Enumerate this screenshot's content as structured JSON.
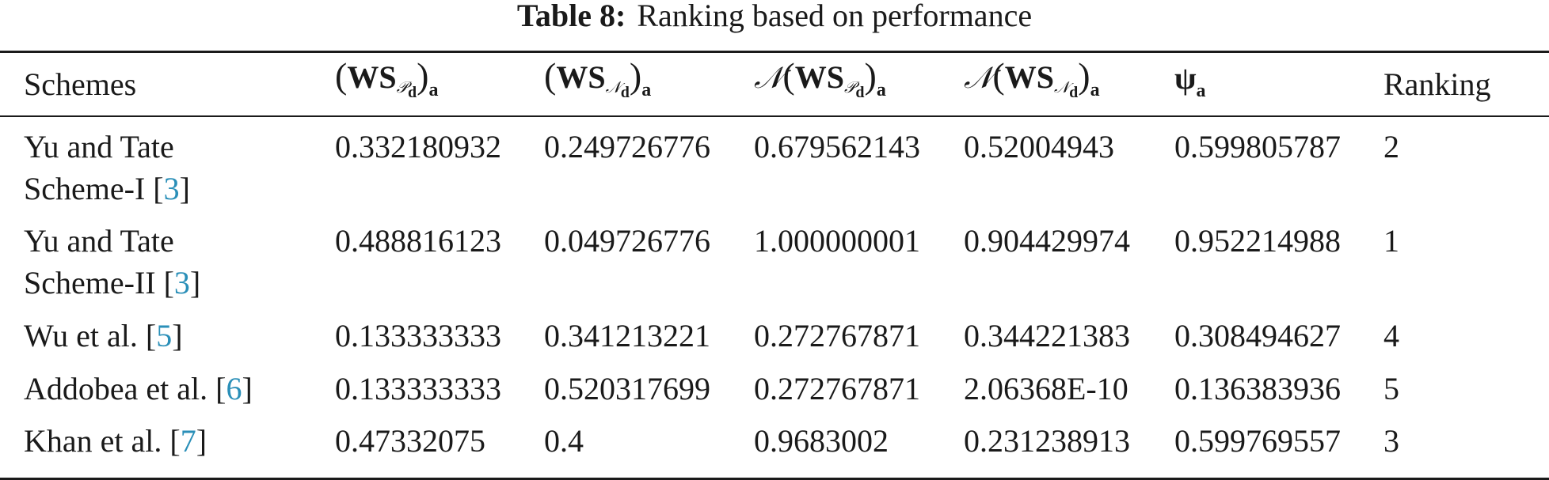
{
  "caption": {
    "label": "Table 8:",
    "text": "Ranking based on performance"
  },
  "table": {
    "headers": [
      "Schemes",
      "(WS_Pd)_a",
      "(WS_Nd)_a",
      "N(WS_Pd)_a",
      "N(WS_Nd)_a",
      "ψ_a",
      "Ranking"
    ],
    "header_parts": {
      "ws": "WS",
      "p": "𝒫",
      "n": "𝒩",
      "d": "d",
      "a": "a",
      "psi": "ψ",
      "open": "(",
      "close": ")"
    },
    "rows": [
      {
        "scheme_line1": "Yu and Tate",
        "scheme_line2": "Scheme-I [",
        "cite": "3",
        "cite_close": "]",
        "ws_p": "0.332180932",
        "ws_n": "0.249726776",
        "n_ws_p": "0.679562143",
        "n_ws_n": "0.52004943",
        "psi": "0.599805787",
        "rank": "2"
      },
      {
        "scheme_line1": "Yu and Tate",
        "scheme_line2": "Scheme-II [",
        "cite": "3",
        "cite_close": "]",
        "ws_p": "0.488816123",
        "ws_n": "0.049726776",
        "n_ws_p": "1.000000001",
        "n_ws_n": "0.904429974",
        "psi": "0.952214988",
        "rank": "1"
      },
      {
        "scheme_line1": "Wu et al. [",
        "cite": "5",
        "cite_close": "]",
        "ws_p": "0.133333333",
        "ws_n": "0.341213221",
        "n_ws_p": "0.272767871",
        "n_ws_n": "0.344221383",
        "psi": "0.308494627",
        "rank": "4"
      },
      {
        "scheme_line1": "Addobea et al. [",
        "cite": "6",
        "cite_close": "]",
        "ws_p": "0.133333333",
        "ws_n": "0.520317699",
        "n_ws_p": "0.272767871",
        "n_ws_n": "2.06368E-10",
        "psi": "0.136383936",
        "rank": "5"
      },
      {
        "scheme_line1": "Khan et al. [",
        "cite": "7",
        "cite_close": "]",
        "ws_p": "0.47332075",
        "ws_n": "0.4",
        "n_ws_p": "0.9683002",
        "n_ws_n": "0.231238913",
        "psi": "0.599769557",
        "rank": "3"
      }
    ]
  },
  "colors": {
    "text": "#1a1a1a",
    "citation_link": "#2a8fb8"
  }
}
